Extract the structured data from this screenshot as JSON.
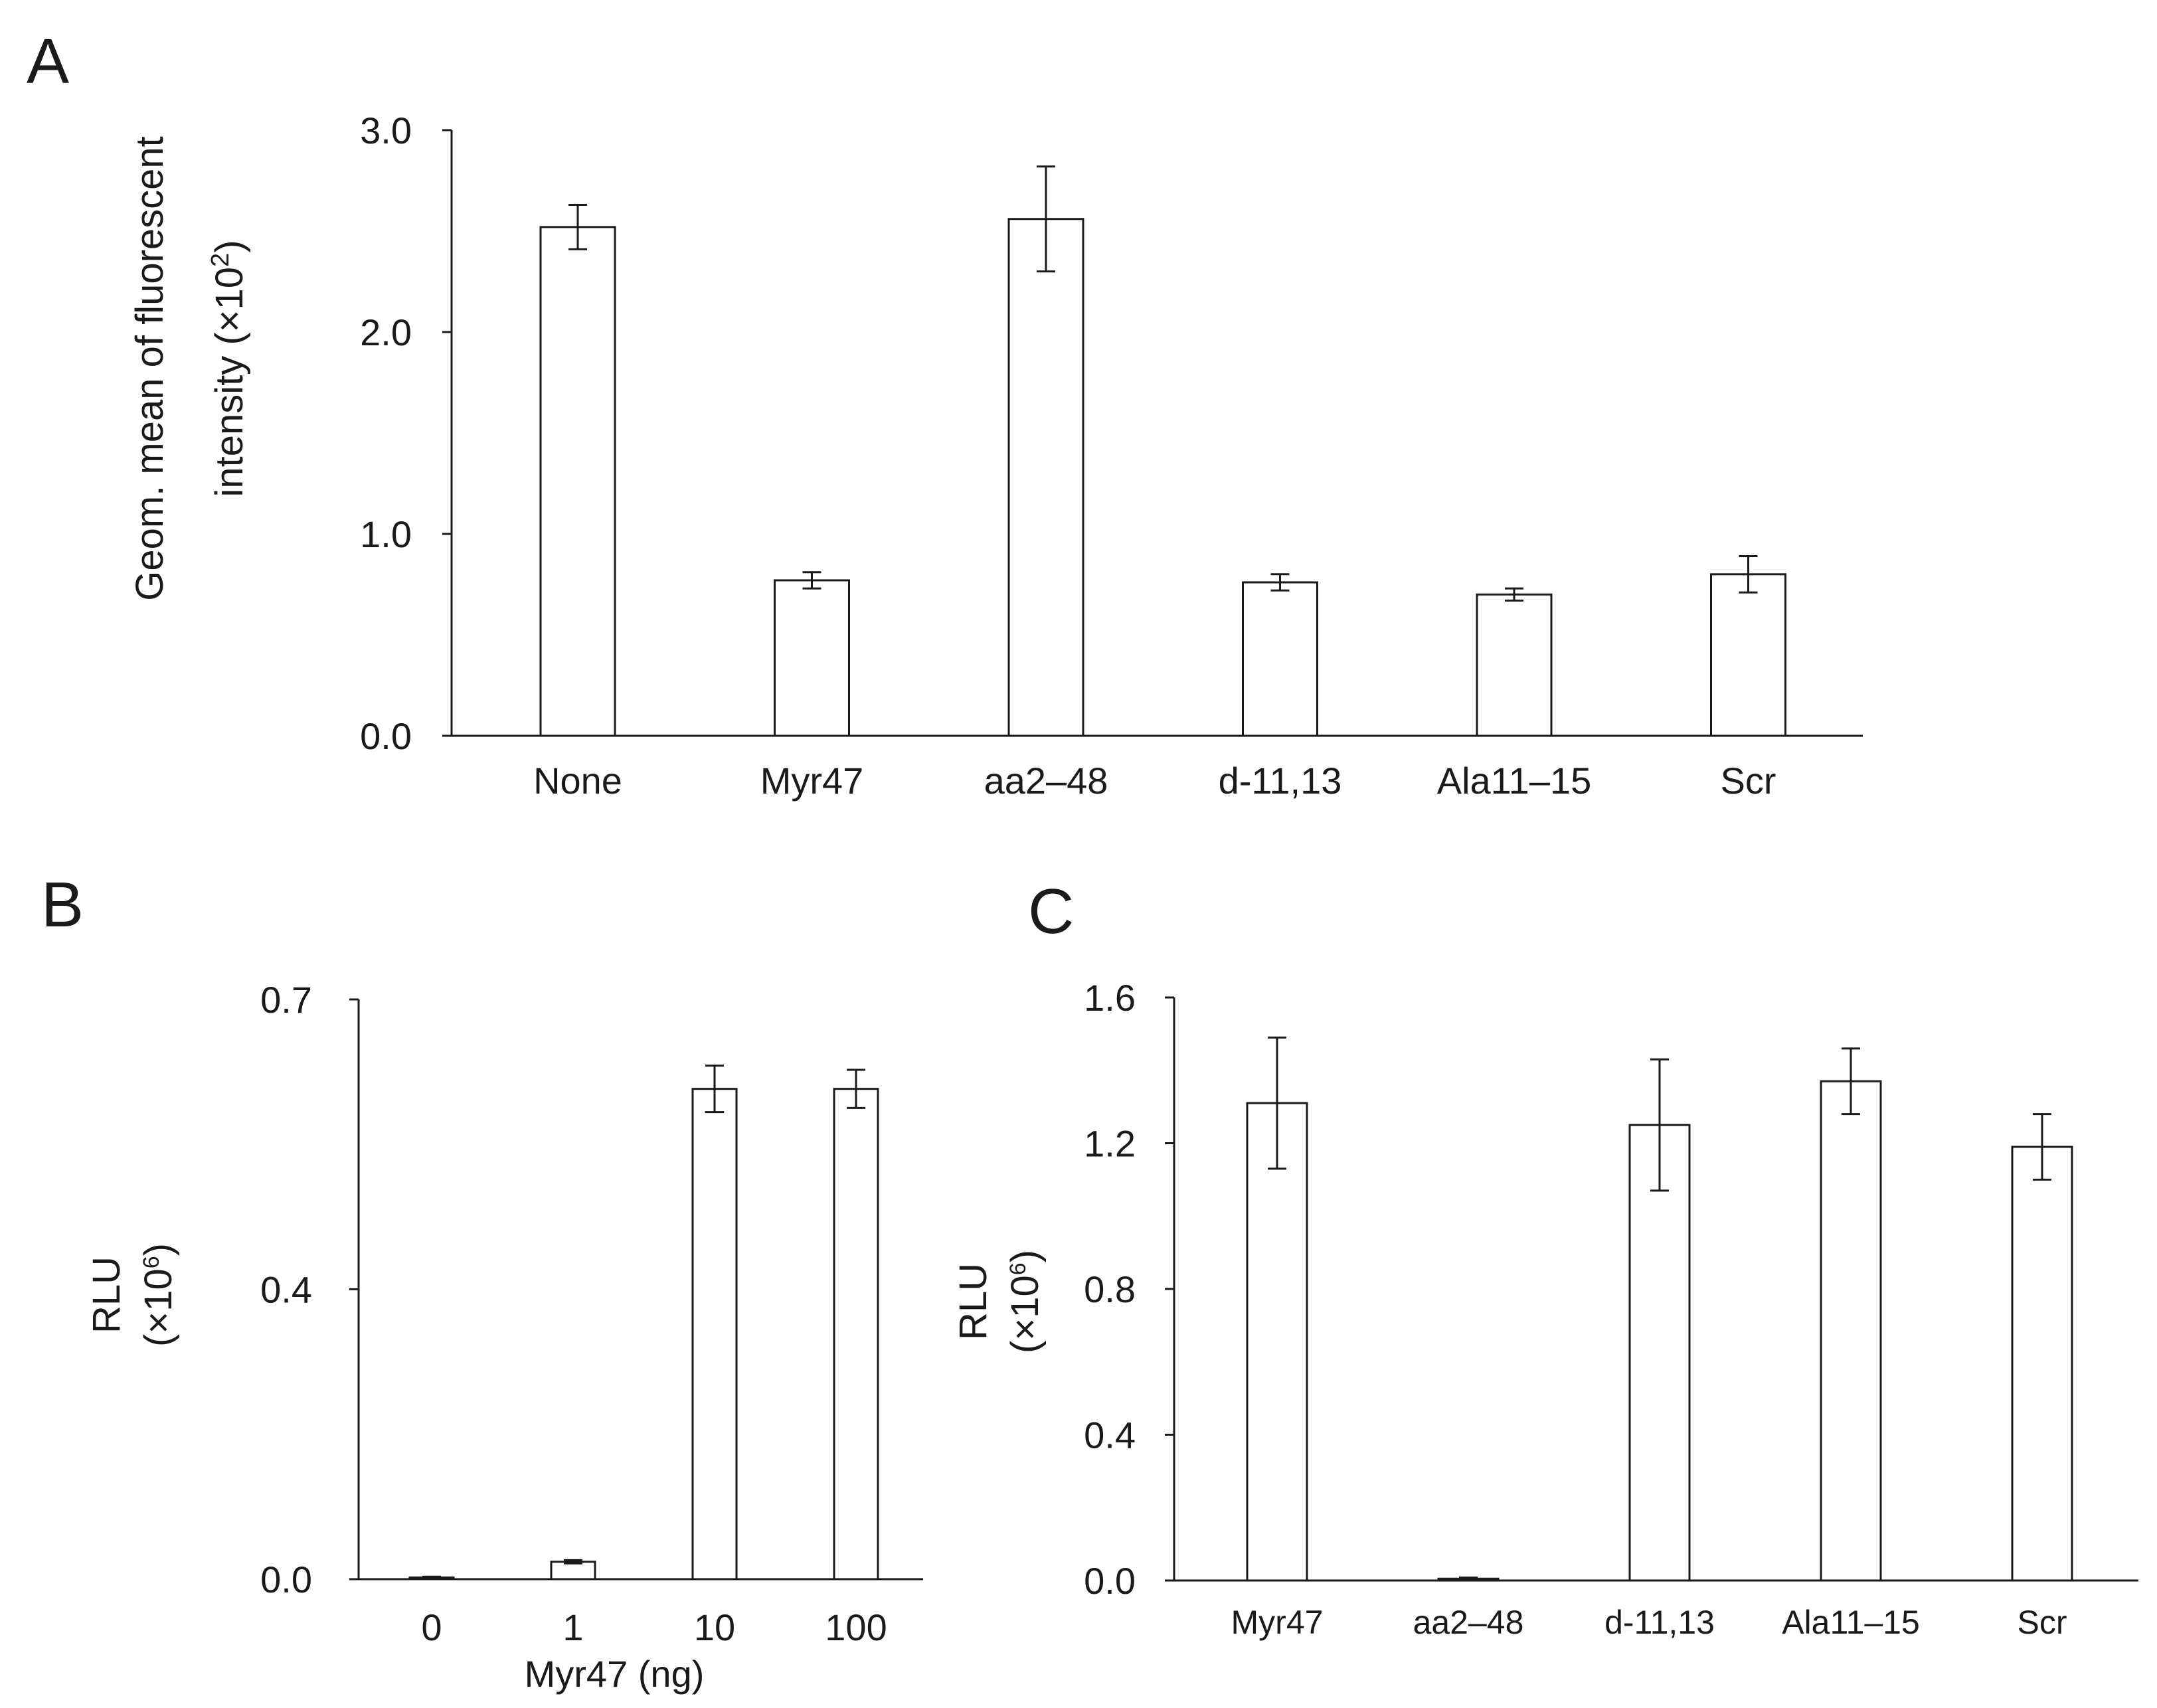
{
  "chart_data": [
    {
      "panel": "A",
      "type": "bar",
      "title": "",
      "categories": [
        "None",
        "Myr47",
        "aa2–48",
        "d-11,13",
        "Ala11–15",
        "Scr"
      ],
      "values": [
        2.52,
        0.77,
        2.56,
        0.76,
        0.7,
        0.8
      ],
      "errors": [
        0.11,
        0.04,
        0.26,
        0.04,
        0.03,
        0.09
      ],
      "ylim": [
        0,
        3.0
      ],
      "yticks": [
        "0.0",
        "1.0",
        "2.0",
        "3.0"
      ],
      "ytick_values": [
        0,
        1,
        2,
        3
      ],
      "ylabel_line1": "Geom. mean of fluorescent",
      "ylabel_line2_prefix": "intensity (×10",
      "ylabel_line2_sup": "2",
      "ylabel_line2_suffix": ")",
      "xlabel": ""
    },
    {
      "panel": "B",
      "type": "bar",
      "title": "",
      "categories": [
        "0",
        "1",
        "10",
        "100"
      ],
      "values": [
        0.002,
        0.021,
        0.592,
        0.592
      ],
      "errors": [
        0.001,
        0.002,
        0.028,
        0.023
      ],
      "ylim": [
        0,
        0.7
      ],
      "yticks": [
        "0.0",
        "0.4",
        "0.7"
      ],
      "ytick_values": [
        0,
        0.35,
        0.7
      ],
      "ylabel_line1": "RLU",
      "ylabel_line2_prefix": "(×10",
      "ylabel_line2_sup": "6",
      "ylabel_line2_suffix": ")",
      "xlabel": "Myr47 (ng)"
    },
    {
      "panel": "C",
      "type": "bar",
      "title": "",
      "categories": [
        "Myr47",
        "aa2–48",
        "d-11,13",
        "Ala11–15",
        "Scr"
      ],
      "values": [
        1.31,
        0.005,
        1.25,
        1.37,
        1.19
      ],
      "errors": [
        0.18,
        0.003,
        0.18,
        0.09,
        0.09
      ],
      "ylim": [
        0,
        1.6
      ],
      "yticks": [
        "0.0",
        "0.4",
        "0.8",
        "1.2",
        "1.6"
      ],
      "ytick_values": [
        0,
        0.4,
        0.8,
        1.2,
        1.6
      ],
      "ylabel_line1": "RLU",
      "ylabel_line2_prefix": "(×10",
      "ylabel_line2_sup": "6",
      "ylabel_line2_suffix": ")",
      "xlabel": ""
    }
  ]
}
